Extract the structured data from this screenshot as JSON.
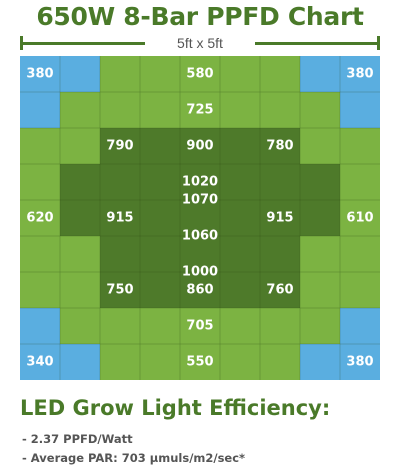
{
  "title": "650W 8-Bar PPFD Chart",
  "dimension_label": "5ft x 5ft",
  "chart_data": {
    "type": "heatmap",
    "title": "650W 8-Bar PPFD Chart",
    "dimension": "5ft x 5ft",
    "rows": 9,
    "cols": 9,
    "cells": [
      [
        "blue",
        "blue",
        "light",
        "light",
        "light",
        "light",
        "light",
        "blue",
        "blue"
      ],
      [
        "blue",
        "light",
        "light",
        "light",
        "light",
        "light",
        "light",
        "light",
        "blue"
      ],
      [
        "light",
        "light",
        "dark",
        "dark",
        "dark",
        "dark",
        "dark",
        "light",
        "light"
      ],
      [
        "light",
        "dark",
        "dark",
        "dark",
        "dark",
        "dark",
        "dark",
        "dark",
        "light"
      ],
      [
        "light",
        "dark",
        "dark",
        "dark",
        "dark",
        "dark",
        "dark",
        "dark",
        "light"
      ],
      [
        "light",
        "light",
        "dark",
        "dark",
        "dark",
        "dark",
        "dark",
        "light",
        "light"
      ],
      [
        "light",
        "light",
        "dark",
        "dark",
        "dark",
        "dark",
        "dark",
        "light",
        "light"
      ],
      [
        "blue",
        "light",
        "light",
        "light",
        "light",
        "light",
        "light",
        "light",
        "blue"
      ],
      [
        "blue",
        "blue",
        "light",
        "light",
        "light",
        "light",
        "light",
        "blue",
        "blue"
      ]
    ],
    "values": [
      {
        "value": "380",
        "row": 0,
        "col": 0
      },
      {
        "value": "580",
        "row": 0,
        "col": 4
      },
      {
        "value": "380",
        "row": 0,
        "col": 8
      },
      {
        "value": "725",
        "row": 1,
        "col": 4
      },
      {
        "value": "790",
        "row": 2,
        "col": 2
      },
      {
        "value": "900",
        "row": 2,
        "col": 4
      },
      {
        "value": "780",
        "row": 2,
        "col": 6
      },
      {
        "value": "1020",
        "row": 3,
        "col": 4
      },
      {
        "value": "620",
        "row": 4,
        "col": 0
      },
      {
        "value": "915",
        "row": 4,
        "col": 2
      },
      {
        "value": "1070",
        "row": 4,
        "col": 4,
        "offset": -0.5
      },
      {
        "value": "1060",
        "row": 4,
        "col": 4,
        "offset": 0.5
      },
      {
        "value": "915",
        "row": 4,
        "col": 6
      },
      {
        "value": "610",
        "row": 4,
        "col": 8
      },
      {
        "value": "1000",
        "row": 5,
        "col": 4,
        "offset": 0.5
      },
      {
        "value": "750",
        "row": 6,
        "col": 2
      },
      {
        "value": "860",
        "row": 6,
        "col": 4
      },
      {
        "value": "760",
        "row": 6,
        "col": 6
      },
      {
        "value": "705",
        "row": 7,
        "col": 4
      },
      {
        "value": "340",
        "row": 8,
        "col": 0
      },
      {
        "value": "550",
        "row": 8,
        "col": 4
      },
      {
        "value": "380",
        "row": 8,
        "col": 8
      }
    ]
  },
  "colors": {
    "title_green": "#4a7a29",
    "light_green": "#7cb342",
    "dark_green": "#4e7a2a",
    "blue": "#5aaee0",
    "text_gray": "#555555"
  },
  "footer": {
    "heading": "LED Grow Light Efficiency:",
    "lines": [
      "- 2.37 PPFD/Watt",
      "- Average PAR: 703 µmuls/m2/sec*"
    ]
  }
}
